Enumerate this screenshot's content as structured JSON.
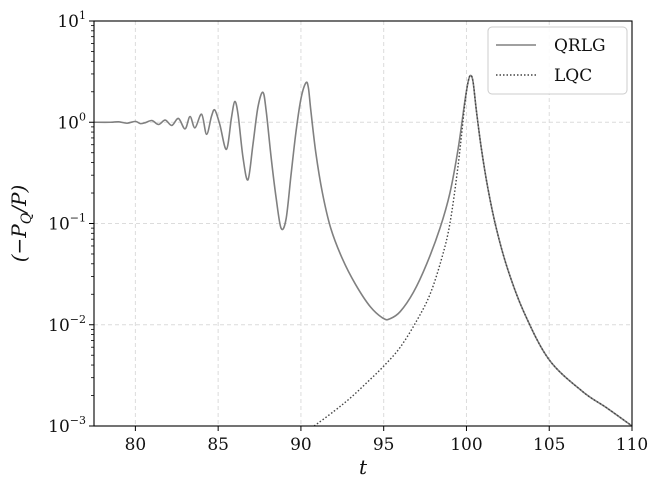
{
  "chart_data": {
    "type": "line",
    "title": "",
    "xlabel": "t",
    "ylabel": "(−P_Q/P)",
    "ylabel_display": "(−P",
    "ylabel_sub": "Q",
    "ylabel_tail": "/P)",
    "xlim": [
      77.5,
      110
    ],
    "ylim": [
      0.001,
      10
    ],
    "yscale": "log",
    "grid": true,
    "legend_position": "upper right",
    "xticks": [
      80,
      85,
      90,
      95,
      100,
      105,
      110
    ],
    "xtick_labels": [
      "80",
      "85",
      "90",
      "95",
      "100",
      "105",
      "110"
    ],
    "yticks": [
      {
        "value": 0.001,
        "base": "10",
        "exp": "−3"
      },
      {
        "value": 0.01,
        "base": "10",
        "exp": "−2"
      },
      {
        "value": 0.1,
        "base": "10",
        "exp": "−1"
      },
      {
        "value": 1,
        "base": "10",
        "exp": "0"
      },
      {
        "value": 10,
        "base": "10",
        "exp": "1"
      }
    ],
    "series": [
      {
        "name": "QRLG",
        "style": "solid",
        "color": "#808080",
        "x": [
          77.5,
          78.5,
          79.0,
          79.5,
          80.0,
          80.3,
          80.6,
          81.0,
          81.4,
          81.8,
          82.2,
          82.6,
          83.0,
          83.3,
          83.6,
          84.0,
          84.3,
          84.6,
          84.8,
          85.1,
          85.5,
          85.8,
          86.0,
          86.2,
          86.5,
          86.8,
          87.1,
          87.4,
          87.7,
          87.9,
          88.2,
          88.5,
          88.8,
          89.1,
          89.4,
          89.7,
          90.0,
          90.3,
          90.45,
          90.6,
          90.9,
          91.3,
          91.8,
          92.5,
          93.3,
          94.2,
          95.0,
          95.4,
          96.0,
          96.8,
          97.6,
          98.4,
          99.0,
          99.5,
          99.9,
          100.1,
          100.25,
          100.4,
          100.6,
          100.9,
          101.3,
          101.8,
          102.5,
          103.5,
          105.0,
          107.0,
          108.5,
          110.0
        ],
        "y": [
          1.0,
          1.0,
          1.01,
          0.98,
          1.02,
          0.97,
          0.99,
          1.04,
          0.95,
          1.05,
          0.93,
          1.09,
          0.86,
          1.14,
          0.88,
          1.2,
          0.76,
          1.15,
          1.32,
          0.95,
          0.54,
          1.1,
          1.6,
          1.2,
          0.45,
          0.27,
          0.6,
          1.4,
          1.98,
          1.3,
          0.45,
          0.18,
          0.09,
          0.11,
          0.3,
          0.8,
          1.7,
          2.45,
          2.2,
          1.3,
          0.5,
          0.2,
          0.09,
          0.045,
          0.025,
          0.015,
          0.0115,
          0.0115,
          0.0135,
          0.021,
          0.04,
          0.09,
          0.2,
          0.55,
          1.6,
          2.5,
          2.9,
          2.5,
          1.3,
          0.55,
          0.22,
          0.09,
          0.035,
          0.013,
          0.0045,
          0.0022,
          0.0015,
          0.001
        ]
      },
      {
        "name": "LQC",
        "style": "dotted",
        "color": "#444444",
        "x": [
          90.8,
          92.0,
          93.0,
          94.0,
          95.0,
          96.0,
          97.0,
          97.8,
          98.5,
          99.0,
          99.5,
          99.9,
          100.1,
          100.25,
          100.4,
          100.6,
          100.9,
          101.3,
          101.8,
          102.5,
          103.5,
          105.0,
          107.0,
          108.5,
          110.0
        ],
        "y": [
          0.001,
          0.0014,
          0.0019,
          0.0027,
          0.0039,
          0.006,
          0.011,
          0.02,
          0.045,
          0.1,
          0.38,
          1.5,
          2.5,
          2.9,
          2.5,
          1.3,
          0.55,
          0.22,
          0.09,
          0.035,
          0.013,
          0.0045,
          0.0022,
          0.0015,
          0.001
        ]
      }
    ]
  }
}
